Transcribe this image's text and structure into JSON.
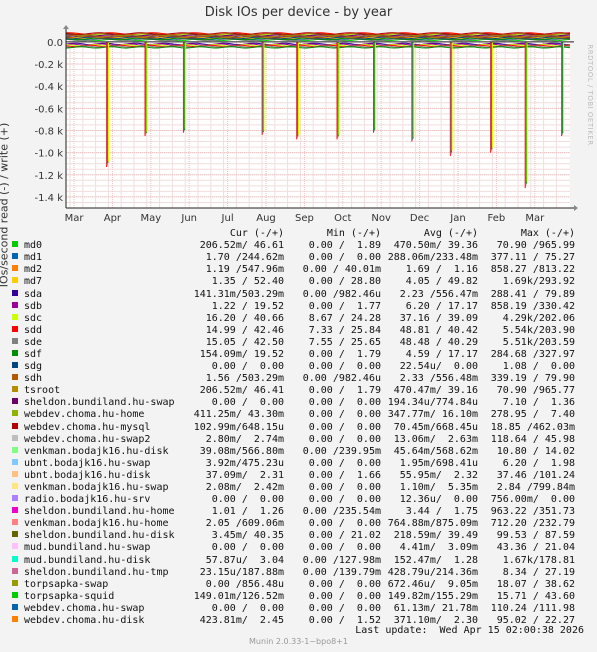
{
  "title": "Disk IOs per device - by year",
  "vendor": "RRDTOOL / TOBI OETIKER",
  "footer": "Munin 2.0.33-1~bpo8+1",
  "last_update": "Last update:  Wed Apr 15 02:00:38 2026",
  "legend_header": {
    "cur": "Cur (-/+)",
    "min": "Min (-/+)",
    "avg": "Avg (-/+)",
    "max": "Max (-/+)"
  },
  "chart_data": {
    "type": "line",
    "title": "Disk IOs per device - by year",
    "ylabel": "IOs/second read (-) / write (+)",
    "ylim": [
      -1500,
      80
    ],
    "yticks": [
      0,
      -200,
      -400,
      -600,
      -800,
      -1000,
      -1200,
      -1400
    ],
    "ytick_labels": [
      "0.0",
      "-0.2 k",
      "-0.4 k",
      "-0.6 k",
      "-0.8 k",
      "-1.0 k",
      "-1.2 k",
      "-1.4 k"
    ],
    "x_months": [
      "Mar",
      "Apr",
      "May",
      "Jun",
      "Jul",
      "Aug",
      "Sep",
      "Oct",
      "Nov",
      "Dec",
      "Jan",
      "Feb",
      "Mar"
    ],
    "grid": true,
    "spikes": [
      {
        "month_index": 0.85,
        "value": -1130
      },
      {
        "month_index": 1.85,
        "value": -850
      },
      {
        "month_index": 2.85,
        "value": -820
      },
      {
        "month_index": 4.9,
        "value": -840
      },
      {
        "month_index": 5.8,
        "value": -880
      },
      {
        "month_index": 6.85,
        "value": -880
      },
      {
        "month_index": 7.8,
        "value": -820
      },
      {
        "month_index": 8.8,
        "value": -900
      },
      {
        "month_index": 9.8,
        "value": -1030
      },
      {
        "month_index": 10.85,
        "value": -1000
      },
      {
        "month_index": 11.75,
        "value": -1320
      },
      {
        "month_index": 12.7,
        "value": -850
      }
    ],
    "series": [
      {
        "name": "md0",
        "color": "#00cc00",
        "cur": "206.52m/ 46.61",
        "min": "0.00 /  1.89",
        "avg": "470.50m/ 39.36",
        "max": "70.90 /965.99"
      },
      {
        "name": "md1",
        "color": "#0066b3",
        "cur": "1.70 /244.62m",
        "min": "0.00 /  0.00",
        "avg": "288.06m/233.48m",
        "max": "377.11 / 75.27"
      },
      {
        "name": "md2",
        "color": "#ff8000",
        "cur": "1.19 /547.96m",
        "min": "0.00 / 40.01m",
        "avg": "1.69 /  1.16",
        "max": "858.27 /813.22"
      },
      {
        "name": "md7",
        "color": "#ffcc00",
        "cur": "1.35 / 52.40",
        "min": "0.00 / 28.80",
        "avg": "4.05 / 49.82",
        "max": "1.69k/293.92"
      },
      {
        "name": "sda",
        "color": "#330099",
        "cur": "141.31m/503.29m",
        "min": "0.00 /982.46u",
        "avg": "2.23 /556.47m",
        "max": "288.41 / 79.89"
      },
      {
        "name": "sdb",
        "color": "#990099",
        "cur": "1.22 / 19.52",
        "min": "0.00 /  1.77",
        "avg": "6.20 / 17.17",
        "max": "858.19 /330.42"
      },
      {
        "name": "sdc",
        "color": "#ccff00",
        "cur": "16.20 / 40.66",
        "min": "8.67 / 24.28",
        "avg": "37.16 / 39.09",
        "max": "4.29k/202.06"
      },
      {
        "name": "sdd",
        "color": "#ff0000",
        "cur": "14.99 / 42.46",
        "min": "7.33 / 25.84",
        "avg": "48.81 / 40.42",
        "max": "5.54k/203.90"
      },
      {
        "name": "sde",
        "color": "#808080",
        "cur": "15.05 / 42.50",
        "min": "7.55 / 25.65",
        "avg": "48.48 / 40.29",
        "max": "5.51k/203.59"
      },
      {
        "name": "sdf",
        "color": "#008f00",
        "cur": "154.09m/ 19.52",
        "min": "0.00 /  1.79",
        "avg": "4.59 / 17.17",
        "max": "284.68 /327.97"
      },
      {
        "name": "sdg",
        "color": "#00487d",
        "cur": "0.00 /  0.00",
        "min": "0.00 /  0.00",
        "avg": "22.54u/  0.00",
        "max": "1.08 /  0.00"
      },
      {
        "name": "sdh",
        "color": "#b35a00",
        "cur": "1.56 /503.29m",
        "min": "0.00 /982.46u",
        "avg": "2.33 /556.48m",
        "max": "339.19 / 79.90"
      },
      {
        "name": "tsroot",
        "color": "#b38f00",
        "cur": "206.52m/ 46.41",
        "min": "0.00 /  1.79",
        "avg": "470.47m/ 39.16",
        "max": "70.90 /965.77"
      },
      {
        "name": "sheldon.bundiland.hu-swap",
        "color": "#6b006b",
        "cur": "0.00 /  0.00",
        "min": "0.00 /  0.00",
        "avg": "194.34u/774.84u",
        "max": "7.10 /  1.36"
      },
      {
        "name": "webdev.choma.hu-home",
        "color": "#8fb300",
        "cur": "411.25m/ 43.30m",
        "min": "0.00 /  0.00",
        "avg": "347.77m/ 16.10m",
        "max": "278.95 /  7.40"
      },
      {
        "name": "webdev.choma.hu-mysql",
        "color": "#b30000",
        "cur": "102.99m/648.15u",
        "min": "0.00 /  0.00",
        "avg": "70.45m/668.45u",
        "max": "18.85 /462.03m"
      },
      {
        "name": "webdev.choma.hu-swap2",
        "color": "#bebebe",
        "cur": "2.80m/  2.74m",
        "min": "0.00 /  0.00",
        "avg": "13.06m/  2.63m",
        "max": "118.64 / 45.98"
      },
      {
        "name": "venkman.bodajk16.hu-disk",
        "color": "#80ff80",
        "cur": "39.08m/566.80m",
        "min": "0.00 /239.95m",
        "avg": "45.64m/568.62m",
        "max": "10.80 / 14.02"
      },
      {
        "name": "ubnt.bodajk16.hu-swap",
        "color": "#80c9ff",
        "cur": "3.92m/475.23u",
        "min": "0.00 /  0.00",
        "avg": "1.95m/698.41u",
        "max": "6.20 /  1.98"
      },
      {
        "name": "ubnt.bodajk16.hu-disk",
        "color": "#ffc080",
        "cur": "37.09m/  2.31",
        "min": "0.00 /  1.66",
        "avg": "55.95m/  2.32",
        "max": "37.46 /101.24"
      },
      {
        "name": "venkman.bodajk16.hu-swap",
        "color": "#ffe680",
        "cur": "2.08m/  2.42m",
        "min": "0.00 /  0.00",
        "avg": "1.10m/  5.35m",
        "max": "2.84 /799.84m"
      },
      {
        "name": "radio.bodajk16.hu-srv",
        "color": "#aa80ff",
        "cur": "0.00 /  0.00",
        "min": "0.00 /  0.00",
        "avg": "12.36u/  0.00",
        "max": "756.00m/  0.00"
      },
      {
        "name": "sheldon.bundiland.hu-home",
        "color": "#ee00cc",
        "cur": "1.01 /  1.26",
        "min": "0.00 /235.54m",
        "avg": "3.44 /  1.75",
        "max": "963.22 /351.73"
      },
      {
        "name": "venkman.bodajk16.hu-home",
        "color": "#ff8080",
        "cur": "2.05 /609.06m",
        "min": "0.00 /  0.00",
        "avg": "764.88m/875.09m",
        "max": "712.20 /232.79"
      },
      {
        "name": "sheldon.bundiland.hu-disk",
        "color": "#666600",
        "cur": "3.45m/ 40.35",
        "min": "0.00 / 21.02",
        "avg": "218.59m/ 39.49",
        "max": "99.53 / 87.59"
      },
      {
        "name": "mud.bundiland.hu-swap",
        "color": "#ffbfff",
        "cur": "0.00 /  0.00",
        "min": "0.00 /  0.00",
        "avg": "4.41m/  3.09m",
        "max": "43.36 / 21.04"
      },
      {
        "name": "mud.bundiland.hu-disk",
        "color": "#00ffcc",
        "cur": "57.87u/  3.04",
        "min": "0.00 /127.98m",
        "avg": "152.47m/  1.28",
        "max": "1.67k/178.81"
      },
      {
        "name": "sheldon.bundiland.hu-tmp",
        "color": "#cc6699",
        "cur": "23.15u/187.88m",
        "min": "0.00 /139.79m",
        "avg": "428.79u/214.36m",
        "max": "8.34 / 27.19"
      },
      {
        "name": "torpsapka-swap",
        "color": "#999900",
        "cur": "0.00 /856.48u",
        "min": "0.00 /  0.00",
        "avg": "672.46u/  9.05m",
        "max": "18.07 / 38.62"
      },
      {
        "name": "torpsapka-squid",
        "color": "#00cc00",
        "cur": "149.01m/126.52m",
        "min": "0.00 /  0.00",
        "avg": "149.82m/155.29m",
        "max": "15.71 / 43.60"
      },
      {
        "name": "webdev.choma.hu-swap",
        "color": "#0066b3",
        "cur": "0.00 /  0.00",
        "min": "0.00 /  0.00",
        "avg": "61.13m/ 21.78m",
        "max": "110.24 /111.98"
      },
      {
        "name": "webdev.choma.hu-disk",
        "color": "#ff8000",
        "cur": "423.81m/  2.45",
        "min": "0.00 /  1.52",
        "avg": "371.10m/  2.30",
        "max": "95.02 / 22.27"
      }
    ]
  }
}
